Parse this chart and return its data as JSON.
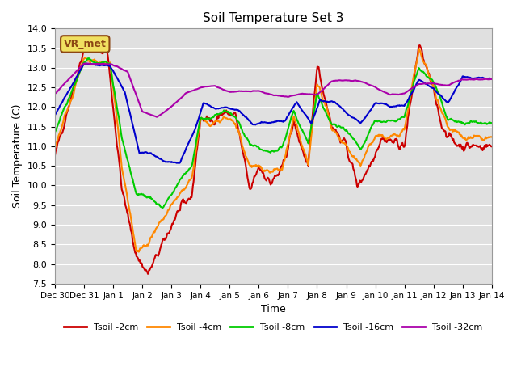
{
  "title": "Soil Temperature Set 3",
  "xlabel": "Time",
  "ylabel": "Soil Temperature (C)",
  "ylim": [
    7.5,
    14.0
  ],
  "yticks": [
    7.5,
    8.0,
    8.5,
    9.0,
    9.5,
    10.0,
    10.5,
    11.0,
    11.5,
    12.0,
    12.5,
    13.0,
    13.5,
    14.0
  ],
  "colors": {
    "Tsoil -2cm": "#cc0000",
    "Tsoil -4cm": "#ff8800",
    "Tsoil -8cm": "#00cc00",
    "Tsoil -16cm": "#0000cc",
    "Tsoil -32cm": "#aa00aa"
  },
  "legend_label": "VR_met",
  "bg_color": "#e0e0e0",
  "grid_color": "#ffffff",
  "line_width": 1.5,
  "xtick_labels": [
    "Dec 30",
    "Dec 31",
    "Jan 1",
    "Jan 2",
    "Jan 3",
    "Jan 4",
    "Jan 5",
    "Jan 6",
    "Jan 7",
    "Jan 8",
    "Jan 9",
    "Jan 10",
    "Jan 11",
    "Jan 12",
    "Jan 13",
    "Jan 14"
  ],
  "xtick_positions": [
    0,
    1,
    2,
    3,
    4,
    5,
    6,
    7,
    8,
    9,
    10,
    11,
    12,
    13,
    14,
    15
  ],
  "t2_xp": [
    0,
    1.0,
    1.8,
    2.3,
    2.8,
    3.2,
    3.8,
    4.2,
    4.7,
    5.0,
    5.4,
    5.8,
    6.2,
    6.7,
    7.0,
    7.4,
    7.8,
    8.2,
    8.7,
    9.0,
    9.5,
    10.0,
    10.4,
    10.8,
    11.2,
    11.7,
    12.0,
    12.5,
    13.0,
    13.3,
    13.7,
    14.0,
    15.0
  ],
  "t2_fp": [
    10.75,
    13.5,
    13.4,
    9.9,
    8.2,
    7.75,
    8.65,
    9.3,
    9.75,
    11.7,
    11.65,
    11.85,
    11.8,
    9.85,
    10.5,
    10.05,
    10.4,
    11.6,
    10.45,
    13.1,
    11.55,
    11.0,
    10.0,
    10.5,
    11.2,
    11.1,
    11.0,
    13.6,
    12.4,
    11.5,
    11.1,
    11.0,
    11.0
  ],
  "t4_xp": [
    0,
    1.0,
    1.9,
    2.3,
    2.8,
    3.2,
    3.7,
    4.2,
    4.7,
    5.0,
    5.4,
    5.8,
    6.2,
    6.7,
    7.0,
    7.4,
    7.8,
    8.2,
    8.7,
    9.0,
    9.5,
    10.0,
    10.5,
    11.0,
    11.5,
    12.0,
    12.5,
    13.0,
    13.5,
    14.0,
    15.0
  ],
  "t4_fp": [
    11.0,
    13.2,
    13.1,
    10.5,
    8.3,
    8.5,
    9.1,
    9.7,
    10.2,
    11.65,
    11.6,
    11.7,
    11.55,
    10.45,
    10.5,
    10.35,
    10.4,
    11.7,
    10.5,
    12.65,
    11.5,
    11.0,
    10.5,
    11.3,
    11.2,
    11.4,
    13.5,
    12.5,
    11.5,
    11.2,
    11.2
  ],
  "t8_xp": [
    0,
    1.0,
    1.9,
    2.3,
    2.8,
    3.2,
    3.7,
    4.2,
    4.7,
    5.0,
    5.4,
    5.8,
    6.2,
    6.7,
    7.0,
    7.4,
    7.8,
    8.2,
    8.7,
    9.0,
    9.5,
    10.0,
    10.5,
    11.0,
    11.5,
    12.0,
    12.5,
    13.0,
    13.5,
    14.0,
    15.0
  ],
  "t8_fp": [
    11.35,
    13.15,
    13.1,
    11.2,
    9.8,
    9.75,
    9.4,
    10.0,
    10.5,
    11.7,
    11.7,
    11.9,
    11.75,
    11.0,
    11.0,
    10.85,
    11.0,
    11.9,
    11.05,
    12.35,
    11.55,
    11.45,
    10.9,
    11.65,
    11.6,
    11.8,
    13.0,
    12.65,
    11.7,
    11.6,
    11.6
  ],
  "t16_xp": [
    0,
    1.0,
    1.9,
    2.4,
    2.9,
    3.3,
    3.8,
    4.3,
    4.8,
    5.1,
    5.5,
    5.9,
    6.3,
    6.8,
    7.1,
    7.5,
    7.9,
    8.3,
    8.8,
    9.1,
    9.6,
    10.0,
    10.5,
    11.0,
    11.5,
    12.0,
    12.5,
    13.0,
    13.5,
    14.0,
    15.0
  ],
  "t16_fp": [
    11.8,
    13.1,
    13.05,
    12.4,
    10.8,
    10.8,
    10.6,
    10.6,
    11.45,
    12.1,
    11.95,
    12.0,
    11.9,
    11.55,
    11.6,
    11.6,
    11.65,
    12.15,
    11.55,
    12.2,
    12.1,
    11.85,
    11.6,
    12.1,
    12.0,
    12.0,
    12.7,
    12.5,
    12.1,
    12.75,
    12.75
  ],
  "t32_xp": [
    0,
    1.0,
    1.9,
    2.5,
    3.0,
    3.5,
    4.0,
    4.5,
    5.0,
    5.5,
    6.0,
    6.5,
    7.0,
    7.5,
    8.0,
    8.5,
    9.0,
    9.5,
    10.0,
    10.5,
    11.0,
    11.5,
    12.0,
    12.5,
    13.0,
    13.5,
    14.0,
    15.0
  ],
  "t32_fp": [
    12.35,
    13.1,
    13.1,
    12.9,
    11.9,
    11.75,
    12.0,
    12.35,
    12.5,
    12.55,
    12.4,
    12.4,
    12.4,
    12.3,
    12.25,
    12.35,
    12.3,
    12.65,
    12.7,
    12.65,
    12.5,
    12.3,
    12.35,
    12.6,
    12.6,
    12.55,
    12.7,
    12.7
  ]
}
